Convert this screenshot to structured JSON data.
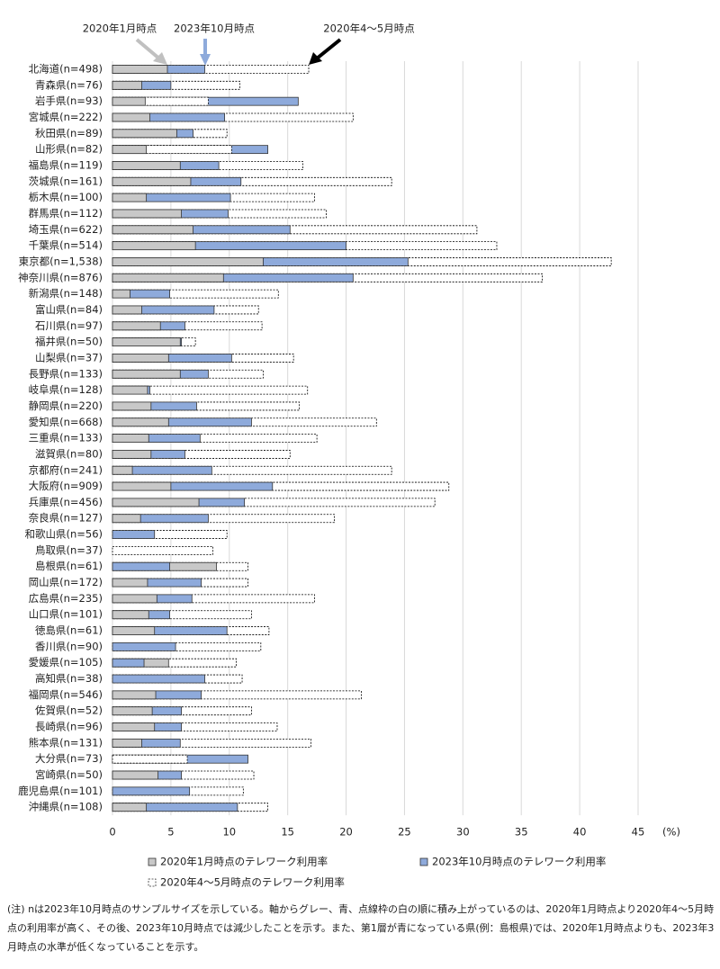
{
  "chart_data": {
    "type": "overlap-bar",
    "categories": [
      "北海道(n=498)",
      "青森県(n=76)",
      "岩手県(n=93)",
      "宮城県(n=222)",
      "秋田県(n=89)",
      "山形県(n=82)",
      "福島県(n=119)",
      "茨城県(n=161)",
      "栃木県(n=100)",
      "群馬県(n=112)",
      "埼玉県(n=622)",
      "千葉県(n=514)",
      "東京都(n=1,538)",
      "神奈川県(n=876)",
      "新潟県(n=148)",
      "富山県(n=84)",
      "石川県(n=97)",
      "福井県(n=50)",
      "山梨県(n=37)",
      "長野県(n=133)",
      "岐阜県(n=128)",
      "静岡県(n=220)",
      "愛知県(n=668)",
      "三重県(n=133)",
      "滋賀県(n=80)",
      "京都府(n=241)",
      "大阪府(n=909)",
      "兵庫県(n=456)",
      "奈良県(n=127)",
      "和歌山県(n=56)",
      "鳥取県(n=37)",
      "島根県(n=61)",
      "岡山県(n=172)",
      "広島県(n=235)",
      "山口県(n=101)",
      "徳島県(n=61)",
      "香川県(n=90)",
      "愛媛県(n=105)",
      "高知県(n=38)",
      "福岡県(n=546)",
      "佐賀県(n=52)",
      "長崎県(n=96)",
      "熊本県(n=131)",
      "大分県(n=73)",
      "宮崎県(n=50)",
      "鹿児島県(n=101)",
      "沖縄県(n=108)"
    ],
    "series": [
      {
        "name": "2020年1月時点のテレワーク利用率",
        "color": "#c8c8c8",
        "style": "solid",
        "values": [
          4.7,
          2.5,
          2.8,
          3.2,
          5.5,
          2.9,
          5.8,
          6.7,
          2.9,
          5.9,
          6.9,
          7.1,
          12.9,
          9.5,
          1.5,
          2.5,
          4.1,
          5.8,
          4.8,
          5.8,
          3.0,
          3.3,
          4.8,
          3.1,
          3.3,
          1.7,
          5.0,
          7.4,
          2.4,
          0,
          0,
          8.9,
          3.0,
          3.8,
          3.1,
          3.6,
          0,
          4.8,
          0,
          3.7,
          3.4,
          3.6,
          2.5,
          0,
          3.9,
          0,
          2.9
        ]
      },
      {
        "name": "2023年10月時点のテレワーク利用率",
        "color": "#8eaadb",
        "style": "solid",
        "values": [
          7.9,
          5.0,
          15.9,
          9.6,
          6.9,
          13.3,
          9.1,
          11.0,
          10.1,
          9.9,
          15.2,
          20.0,
          25.3,
          20.6,
          4.9,
          8.7,
          6.2,
          5.9,
          10.2,
          8.2,
          3.2,
          7.2,
          11.9,
          7.5,
          6.2,
          8.5,
          13.7,
          11.3,
          8.2,
          3.6,
          0,
          4.9,
          7.6,
          6.8,
          4.9,
          9.8,
          5.4,
          2.7,
          7.9,
          7.6,
          5.9,
          5.9,
          5.8,
          11.6,
          5.9,
          6.6,
          10.7
        ]
      },
      {
        "name": "2020年4～5月時点のテレワーク利用率",
        "color": "#ffffff",
        "style": "dotted",
        "values": [
          16.8,
          10.9,
          8.2,
          20.6,
          9.8,
          10.2,
          16.3,
          23.9,
          17.3,
          18.3,
          31.2,
          32.9,
          42.7,
          36.8,
          14.2,
          12.5,
          12.8,
          7.1,
          15.5,
          12.9,
          16.7,
          16.0,
          22.6,
          17.5,
          15.2,
          23.9,
          28.8,
          27.6,
          19.0,
          9.8,
          8.6,
          11.6,
          11.6,
          17.3,
          11.9,
          13.4,
          12.7,
          10.6,
          11.1,
          21.3,
          11.9,
          14.1,
          17.0,
          6.4,
          12.1,
          11.2,
          13.3
        ]
      }
    ],
    "xlim": [
      0,
      45
    ],
    "xticks": [
      0,
      5,
      10,
      15,
      20,
      25,
      30,
      35,
      40,
      45
    ],
    "x_unit": "(%)",
    "grid": true,
    "annotations": [
      "2020年1月時点",
      "2023年10月時点",
      "2020年4～5月時点"
    ],
    "note": "(注) nは2023年10月時点のサンプルサイズを示している。軸からグレー、青、点線枠の白の順に積み上がっているのは、2020年1月時点より2020年4～5月時点の利用率が高く、その後、2023年10月時点では減少したことを示す。また、第1層が青になっている県(例：島根県)では、2020年1月時点よりも、2023年3月時点の水準が低くなっていることを示す。"
  }
}
